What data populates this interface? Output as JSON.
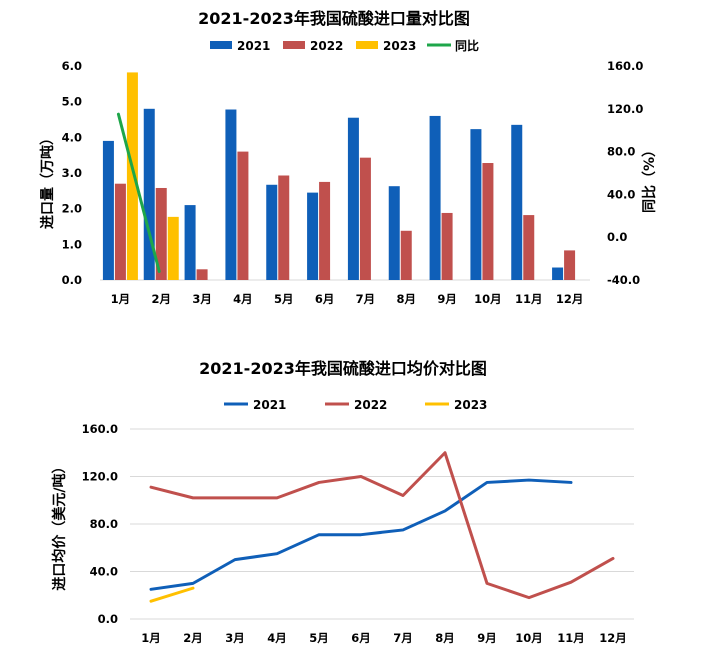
{
  "chart_data": [
    {
      "type": "bar",
      "title": "2021-2023年我国硫酸进口量对比图",
      "categories": [
        "1月",
        "2月",
        "3月",
        "4月",
        "5月",
        "6月",
        "7月",
        "8月",
        "9月",
        "10月",
        "11月",
        "12月"
      ],
      "ylabel": "进口量（万吨）",
      "y2label": "同比（%）",
      "ylim": [
        0,
        6
      ],
      "y2lim": [
        -40,
        160
      ],
      "yticks": [
        "0.0",
        "1.0",
        "2.0",
        "3.0",
        "4.0",
        "5.0",
        "6.0"
      ],
      "y2ticks": [
        "-40.0",
        "0.0",
        "40.0",
        "80.0",
        "120.0",
        "160.0"
      ],
      "legend_position": "top",
      "series": [
        {
          "name": "2021",
          "color": "#0F5FB8",
          "values": [
            3.9,
            4.8,
            2.1,
            4.78,
            2.67,
            2.45,
            4.55,
            2.63,
            4.6,
            4.23,
            4.35,
            0.35
          ]
        },
        {
          "name": "2022",
          "color": "#C0504D",
          "values": [
            2.7,
            2.58,
            0.3,
            3.6,
            2.93,
            2.75,
            3.43,
            1.38,
            1.88,
            3.28,
            1.82,
            0.83
          ]
        },
        {
          "name": "2023",
          "color": "#FFC000",
          "values": [
            5.82,
            1.77,
            null,
            null,
            null,
            null,
            null,
            null,
            null,
            null,
            null,
            null
          ]
        }
      ],
      "yoy_series": {
        "name": "同比",
        "color": "#1EA64A",
        "axis": "right",
        "values": [
          115,
          -32,
          null,
          null,
          null,
          null,
          null,
          null,
          null,
          null,
          null,
          null
        ]
      }
    },
    {
      "type": "line",
      "title": "2021-2023年我国硫酸进口均价对比图",
      "categories": [
        "1月",
        "2月",
        "3月",
        "4月",
        "5月",
        "6月",
        "7月",
        "8月",
        "9月",
        "10月",
        "11月",
        "12月"
      ],
      "ylabel": "进口均价（美元/吨）",
      "ylim": [
        0,
        160
      ],
      "yticks": [
        "0.0",
        "40.0",
        "80.0",
        "120.0",
        "160.0"
      ],
      "grid": true,
      "legend_position": "top",
      "series": [
        {
          "name": "2021",
          "color": "#0F5FB8",
          "values": [
            25,
            30,
            50,
            55,
            71,
            71,
            75,
            91,
            115,
            117,
            115,
            null
          ]
        },
        {
          "name": "2022",
          "color": "#C0504D",
          "values": [
            111,
            102,
            102,
            102,
            115,
            120,
            104,
            140,
            30,
            18,
            31,
            51
          ]
        },
        {
          "name": "2023",
          "color": "#FFC000",
          "values": [
            15,
            26,
            null,
            null,
            null,
            null,
            null,
            null,
            null,
            null,
            null,
            null
          ]
        }
      ]
    }
  ]
}
